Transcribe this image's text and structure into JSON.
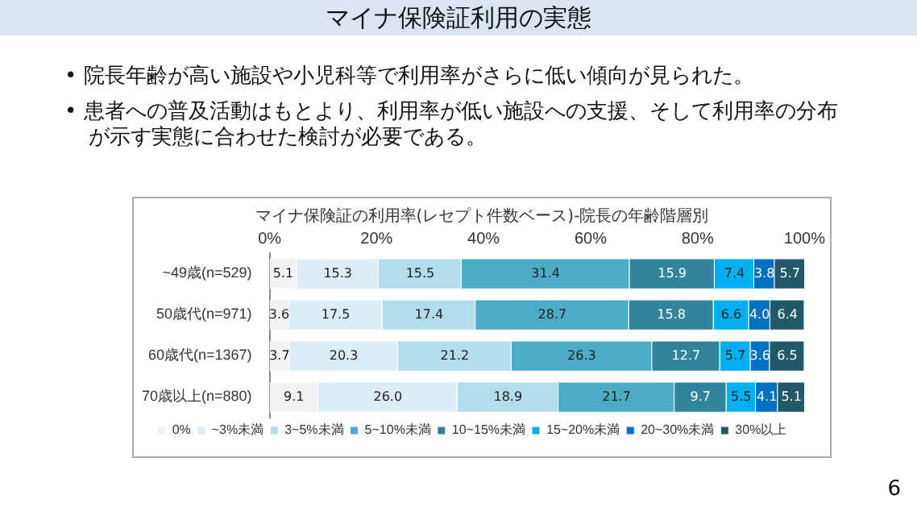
{
  "chart_data": {
    "type": "bar",
    "orientation": "horizontal",
    "stacked": true,
    "title": "マイナ保険証利用の実態",
    "subtitle": "マイナ保険証の利用率(レセプト件数ベース)-院長の年齢階層別",
    "annotations": [
      "• 院長年齢が高い施設や小児科等で利用率がさらに低い傾向が見られた。",
      "• 患者への普及活動はもとより、利用率が低い施設への支援、そして利用率の分布が示す実態に合わせた検討が必要である。",
      "6"
    ],
    "categories": [
      "~49歳(n=529)",
      "50歳代(n=971)",
      "60歳代(n=1367)",
      "70歳以上(n=880)"
    ],
    "xlim": [
      0,
      100
    ],
    "xticks": [
      {
        "value": 0,
        "label": "0%"
      },
      {
        "value": 20,
        "label": "20%"
      },
      {
        "value": 40,
        "label": "40%"
      },
      {
        "value": 60,
        "label": "60%"
      },
      {
        "value": 80,
        "label": "80%"
      },
      {
        "value": 100,
        "label": "100%"
      }
    ],
    "series": [
      {
        "name": "0%",
        "color": "#f2f2f2",
        "values": [
          5.1,
          3.6,
          3.7,
          9.1
        ],
        "value_labels": [
          "5.1",
          "3.6",
          "3.7",
          "9.1"
        ]
      },
      {
        "name": "~3%未満",
        "color": "#dcedf5",
        "values": [
          15.3,
          17.5,
          20.3,
          26.0
        ],
        "value_labels": [
          "15.3",
          "17.5",
          "20.3",
          "26.0"
        ]
      },
      {
        "name": "3~5%未満",
        "color": "#b3dcec",
        "values": [
          15.5,
          17.4,
          21.2,
          18.9
        ],
        "value_labels": [
          "15.5",
          "17.4",
          "21.2",
          "18.9"
        ]
      },
      {
        "name": "5~10%未満",
        "color": "#4bacc6",
        "values": [
          31.4,
          28.7,
          26.3,
          21.7
        ],
        "value_labels": [
          "31.4",
          "28.7",
          "26.3",
          "21.7"
        ]
      },
      {
        "name": "10~15%未満",
        "color": "#31849b",
        "values": [
          15.9,
          15.8,
          12.7,
          9.7
        ],
        "value_labels": [
          "15.9",
          "15.8",
          "12.7",
          "9.7"
        ]
      },
      {
        "name": "15~20%未満",
        "color": "#00b0f0",
        "values": [
          7.4,
          6.6,
          5.7,
          5.5
        ],
        "value_labels": [
          "7.4",
          "6.6",
          "5.7",
          "5.5"
        ]
      },
      {
        "name": "20~30%未満",
        "color": "#0070c0",
        "values": [
          3.8,
          4.0,
          3.6,
          4.1
        ],
        "value_labels": [
          "3.8",
          "4.0",
          "3.6",
          "4.1"
        ]
      },
      {
        "name": "30%以上",
        "color": "#215968",
        "values": [
          5.7,
          6.4,
          6.5,
          5.1
        ],
        "value_labels": [
          "5.7",
          "6.4",
          "6.5",
          "5.1"
        ]
      }
    ],
    "legend": "bottom",
    "grid": false
  }
}
